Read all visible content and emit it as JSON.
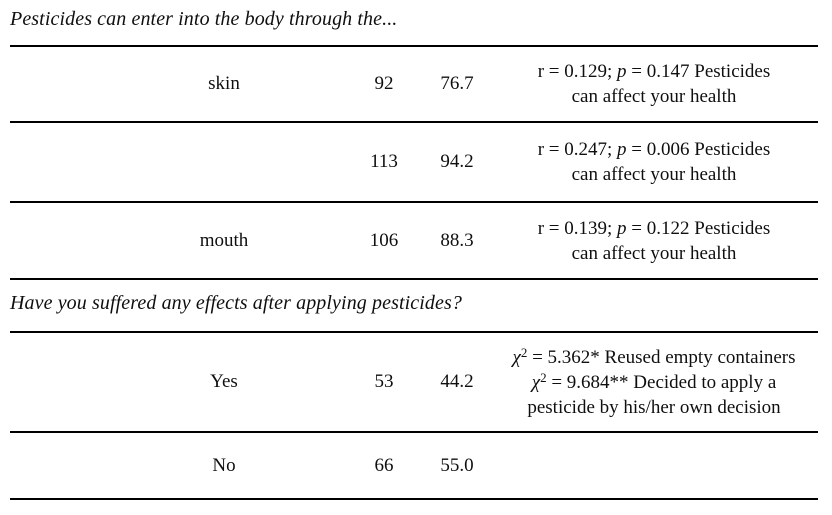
{
  "colors": {
    "background": "#ffffff",
    "text": "#0f0f0f",
    "rule": "#000000"
  },
  "table": {
    "section1": {
      "header": "Pesticides can enter into the body through the..."
    },
    "section2": {
      "header": "Have you suffered any effects after applying pesticides?"
    },
    "rows": [
      {
        "label": "skin",
        "n": "92",
        "pct": "76.7",
        "stats_lines": [
          [
            {
              "t": "r = 0.129; "
            },
            {
              "t": "p",
              "style": "italic"
            },
            {
              "t": " = 0.147 Pesticides"
            }
          ],
          [
            {
              "t": "can affect your health"
            }
          ]
        ]
      },
      {
        "label": "",
        "n": "113",
        "pct": "94.2",
        "stats_lines": [
          [
            {
              "t": "r = 0.247; "
            },
            {
              "t": "p",
              "style": "italic"
            },
            {
              "t": " = 0.006 Pesticides"
            }
          ],
          [
            {
              "t": "can affect your health"
            }
          ]
        ]
      },
      {
        "label": "mouth",
        "n": "106",
        "pct": "88.3",
        "stats_lines": [
          [
            {
              "t": "r = 0.139; "
            },
            {
              "t": "p",
              "style": "italic"
            },
            {
              "t": " = 0.122 Pesticides"
            }
          ],
          [
            {
              "t": "can affect your health"
            }
          ]
        ]
      },
      {
        "label": "Yes",
        "n": "53",
        "pct": "44.2",
        "stats_lines": [
          [
            {
              "t": "χ",
              "style": "italic"
            },
            {
              "t": "2",
              "style": "sup"
            },
            {
              "t": " = 5.362* Reused empty containers"
            }
          ],
          [
            {
              "t": "χ",
              "style": "italic"
            },
            {
              "t": "2",
              "style": "sup"
            },
            {
              "t": " = 9.684** Decided to apply a"
            }
          ],
          [
            {
              "t": "pesticide by his/her own decision"
            }
          ]
        ]
      },
      {
        "label": "No",
        "n": "66",
        "pct": "55.0",
        "stats_lines": []
      }
    ]
  }
}
